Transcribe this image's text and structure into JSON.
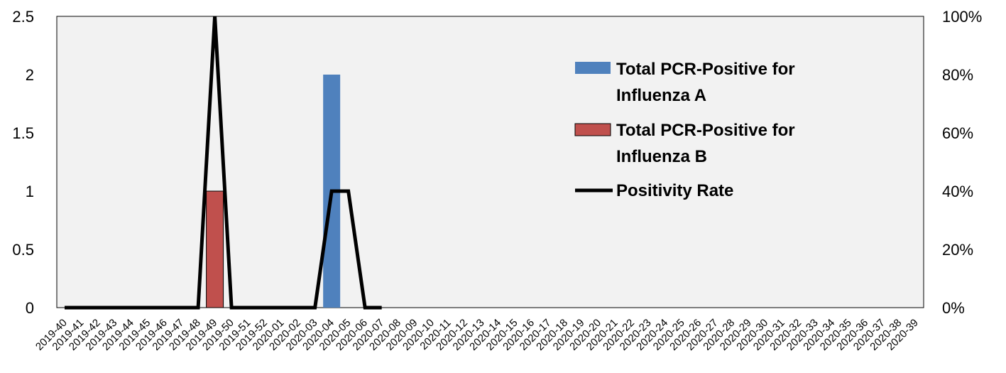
{
  "chart_data": {
    "type": "bar",
    "categories": [
      "2019-40",
      "2019-41",
      "2019-42",
      "2019-43",
      "2019-44",
      "2019-45",
      "2019-46",
      "2019-47",
      "2019-48",
      "2019-49",
      "2019-50",
      "2019-51",
      "2019-52",
      "2020-01",
      "2020-02",
      "2020-03",
      "2020-04",
      "2020-05",
      "2020-06",
      "2020-07",
      "2020-08",
      "2020-09",
      "2020-10",
      "2020-11",
      "2020-12",
      "2020-13",
      "2020-14",
      "2020-15",
      "2020-16",
      "2020-17",
      "2020-18",
      "2020-19",
      "2020-20",
      "2020-21",
      "2020-22",
      "2020-23",
      "2020-24",
      "2020-25",
      "2020-26",
      "2020-27",
      "2020-28",
      "2020-29",
      "2020-30",
      "2020-31",
      "2020-32",
      "2020-33",
      "2020-34",
      "2020-35",
      "2020-36",
      "2020-37",
      "2020-38",
      "2020-39"
    ],
    "series": [
      {
        "name": "Total PCR-Positive for Influenza A",
        "kind": "bar",
        "axis": "left",
        "color": "#4f81bd",
        "values": [
          0,
          0,
          0,
          0,
          0,
          0,
          0,
          0,
          0,
          0,
          0,
          0,
          0,
          0,
          0,
          0,
          2,
          0,
          0,
          0,
          0,
          0,
          0,
          0,
          0,
          0,
          0,
          0,
          0,
          0,
          0,
          0,
          0,
          0,
          0,
          0,
          0,
          0,
          0,
          0,
          0,
          0,
          0,
          0,
          0,
          0,
          0,
          0,
          0,
          0,
          0,
          0
        ]
      },
      {
        "name": "Total PCR-Positive for Influenza B",
        "kind": "bar",
        "axis": "left",
        "color": "#c0504d",
        "values": [
          0,
          0,
          0,
          0,
          0,
          0,
          0,
          0,
          0,
          1,
          0,
          0,
          0,
          0,
          0,
          0,
          0,
          0,
          0,
          0,
          0,
          0,
          0,
          0,
          0,
          0,
          0,
          0,
          0,
          0,
          0,
          0,
          0,
          0,
          0,
          0,
          0,
          0,
          0,
          0,
          0,
          0,
          0,
          0,
          0,
          0,
          0,
          0,
          0,
          0,
          0,
          0
        ]
      },
      {
        "name": "Positivity Rate",
        "kind": "line",
        "axis": "right",
        "color": "#000000",
        "values": [
          0,
          0,
          0,
          0,
          0,
          0,
          0,
          0,
          0,
          100,
          0,
          0,
          0,
          0,
          0,
          0,
          40,
          40,
          0,
          0,
          null,
          null,
          null,
          null,
          null,
          null,
          null,
          null,
          null,
          null,
          null,
          null,
          null,
          null,
          null,
          null,
          null,
          null,
          null,
          null,
          null,
          null,
          null,
          null,
          null,
          null,
          null,
          null,
          null,
          null,
          null,
          null
        ]
      }
    ],
    "y_left": {
      "ylim": [
        0,
        2.5
      ],
      "ticks": [
        "0",
        "0.5",
        "1",
        "1.5",
        "2",
        "2.5"
      ]
    },
    "y_right": {
      "ylim": [
        0,
        100
      ],
      "ticks": [
        "0%",
        "20%",
        "40%",
        "60%",
        "80%",
        "100%"
      ]
    },
    "plot_background": "#f2f2f2",
    "grid": false,
    "legend_position": "inside-top-right"
  }
}
